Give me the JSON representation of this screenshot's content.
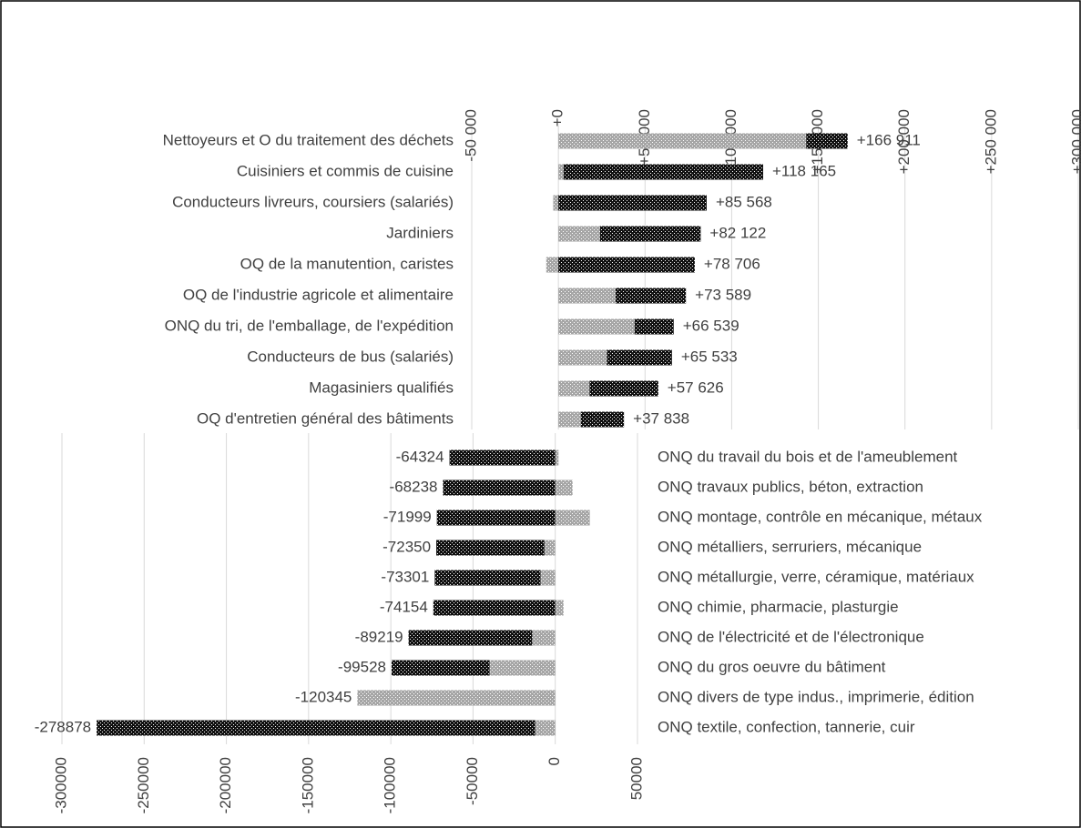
{
  "chart_data": [
    {
      "type": "stacked-bar-h",
      "xaxis_position": "top",
      "categories": [
        "Nettoyeurs et O du traitement des déchets",
        "Cuisiniers et commis de cuisine",
        "Conducteurs livreurs, coursiers (salariés)",
        "Jardiniers",
        "OQ de la manutention, caristes",
        "OQ de l'industrie agricole et alimentaire",
        "ONQ du tri, de l'emballage, de l'expédition",
        "Conducteurs de bus (salariés)",
        "Magasiniers qualifiés",
        "OQ d'entretien général des bâtiments"
      ],
      "series": [
        {
          "color": "#a6a6a6",
          "values": [
            143000,
            3000,
            -3000,
            24000,
            -7000,
            33000,
            44000,
            28000,
            18000,
            13000
          ]
        },
        {
          "color": "#111111",
          "values": [
            23911,
            115165,
            85568,
            58122,
            78706,
            40589,
            22539,
            37533,
            39626,
            24838
          ]
        }
      ],
      "values": [
        166911,
        118165,
        85568,
        82122,
        78706,
        73589,
        66539,
        65533,
        57626,
        37838
      ],
      "value_labels": [
        "+166 911",
        "+118 165",
        "+85 568",
        "+82 122",
        "+78 706",
        "+73 589",
        "+66 539",
        "+65 533",
        "+57 626",
        "+37 838"
      ],
      "xlim": [
        -50000,
        300000
      ],
      "xticks": [
        {
          "value": -50000,
          "label": "-50 000"
        },
        {
          "value": 0,
          "label": "+0"
        },
        {
          "value": 50000,
          "label": "+50 000"
        },
        {
          "value": 100000,
          "label": "+100 000"
        },
        {
          "value": 150000,
          "label": "+150 000"
        },
        {
          "value": 200000,
          "label": "+200 000"
        },
        {
          "value": 250000,
          "label": "+250 000"
        },
        {
          "value": 300000,
          "label": "+300 000"
        }
      ],
      "grid": true
    },
    {
      "type": "stacked-bar-h",
      "xaxis_position": "bottom",
      "categories": [
        "ONQ du travail du bois et de l'ameublement",
        "ONQ travaux publics, béton, extraction",
        "ONQ montage, contrôle en mécanique, métaux",
        "ONQ métalliers, serruriers, mécanique",
        "ONQ métallurgie, verre, céramique, matériaux",
        "ONQ chimie, pharmacie, plasturgie",
        "ONQ de l'électricité et de l'électronique",
        "ONQ du gros oeuvre du bâtiment",
        "ONQ divers de type indus., imprimerie, édition",
        "ONQ textile, confection, tannerie, cuir"
      ],
      "series": [
        {
          "color": "#a6a6a6",
          "values": [
            2000,
            10500,
            21000,
            -6600,
            -9000,
            5000,
            -14000,
            -40000,
            -120345,
            -12200
          ]
        },
        {
          "color": "#111111",
          "values": [
            -64324,
            -68238,
            -71999,
            -65750,
            -64301,
            -74154,
            -75219,
            -59528,
            0,
            -266678
          ]
        }
      ],
      "values": [
        -64324,
        -68238,
        -71999,
        -72350,
        -73301,
        -74154,
        -89219,
        -99528,
        -120345,
        -278878
      ],
      "xlim": [
        -300000,
        50000
      ],
      "xticks": [
        -300000,
        -250000,
        -200000,
        -150000,
        -100000,
        -50000,
        0,
        50000
      ],
      "grid": true
    }
  ]
}
